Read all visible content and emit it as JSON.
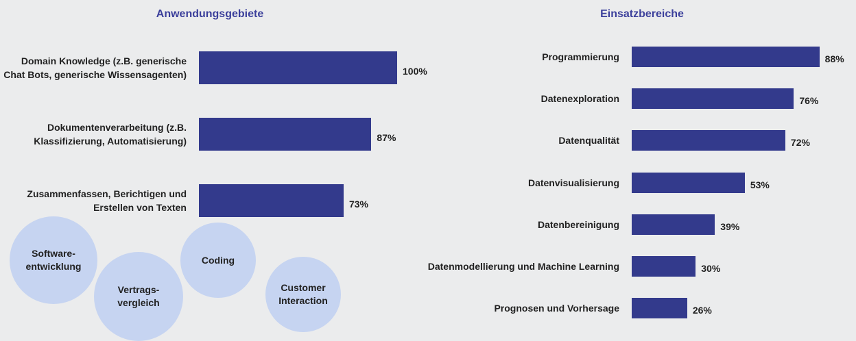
{
  "chart_data": [
    {
      "type": "bar",
      "orientation": "horizontal",
      "title": "Anwendungsgebiete",
      "categories": [
        "Domain Knowledge (z.B. generische Chat Bots, generische Wissensagenten)",
        "Dokumentenverarbeitung (z.B. Klassifizierung, Automatisierung)",
        "Zusammenfassen, Berichtigen und Erstellen von Texten"
      ],
      "values": [
        100,
        87,
        73
      ],
      "value_labels": [
        "100%",
        "87%",
        "73%"
      ],
      "color": "#333a8c",
      "xlim": [
        0,
        100
      ]
    },
    {
      "type": "bar",
      "orientation": "horizontal",
      "title": "Einsatzbereiche",
      "categories": [
        "Programmierung",
        "Datenexploration",
        "Datenqualität",
        "Datenvisualisierung",
        "Datenbereinigung",
        "Datenmodellierung und Machine Learning",
        "Prognosen und Vorhersage"
      ],
      "values": [
        88,
        76,
        72,
        53,
        39,
        30,
        26
      ],
      "value_labels": [
        "88%",
        "76%",
        "72%",
        "53%",
        "39%",
        "30%",
        "26%"
      ],
      "color": "#333a8c",
      "xlim": [
        0,
        100
      ]
    }
  ],
  "bubbles": [
    "Software-\nentwicklung",
    "Vertrags-\nvergleich",
    "Coding",
    "Customer\nInteraction"
  ]
}
